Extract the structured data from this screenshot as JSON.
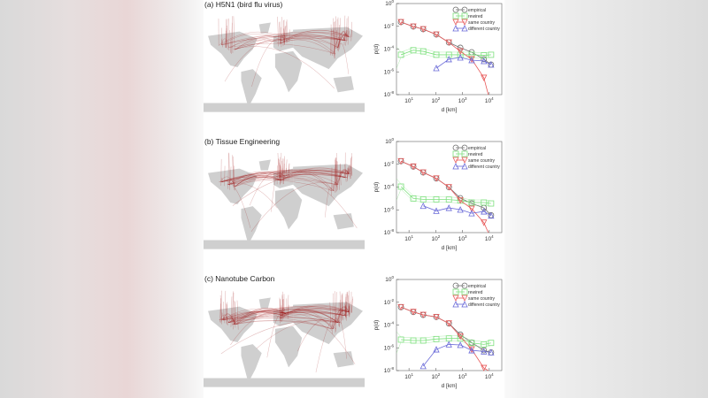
{
  "panels": [
    {
      "title": "(a) H5N1 (bird flu virus)"
    },
    {
      "title": "(b) Tissue Engineering"
    },
    {
      "title": "(c) Nanotube Carbon"
    }
  ],
  "colors": {
    "empirical": "#707070",
    "rewired": "#7ee07e",
    "same_country": "#e85a5a",
    "different_country": "#6a6ad8",
    "map_land": "#cfcfcf",
    "map_links": "#a01818"
  },
  "chart_data": [
    {
      "type": "line",
      "xscale": "log",
      "yscale": "log",
      "xlabel": "d  [km]",
      "ylabel": "p(d)",
      "xlim": [
        3.4,
        29500
      ],
      "ylim": [
        1e-08,
        1
      ],
      "xticks": [
        "10^1",
        "10^2",
        "10^3",
        "10^4"
      ],
      "yticks": [
        "10^0",
        "10^-2",
        "10^-4",
        "10^-6",
        "10^-8"
      ],
      "legend": "top-right",
      "x": [
        5,
        14.5,
        34,
        105,
        310,
        830,
        2200,
        6300,
        11700
      ],
      "series": [
        {
          "name": "empirical",
          "marker": "circle",
          "log10_values": [
            -1.63,
            -2.02,
            -2.25,
            -2.72,
            -3.42,
            -3.88,
            -4.27,
            -4.89,
            -5.36
          ]
        },
        {
          "name": "rewired",
          "marker": "square",
          "log10_values": [
            -4.5,
            -4.1,
            -4.2,
            -4.5,
            -4.5,
            -4.5,
            -4.5,
            -4.55,
            -4.5
          ]
        },
        {
          "name": "same country",
          "marker": "triangle-down",
          "log10_values": [
            -1.63,
            -2.02,
            -2.25,
            -2.72,
            -3.42,
            -4.2,
            -4.89,
            -6.52,
            null
          ]
        },
        {
          "name": "different country",
          "marker": "triangle-up",
          "log10_values": [
            null,
            null,
            null,
            -5.67,
            -4.89,
            -4.74,
            -4.97,
            -5.05,
            -5.36
          ]
        }
      ]
    },
    {
      "type": "line",
      "xscale": "log",
      "yscale": "log",
      "xlabel": "d  [km]",
      "ylabel": "p(d)",
      "xlim": [
        3.4,
        29500
      ],
      "ylim": [
        1e-08,
        1
      ],
      "xticks": [
        "10^1",
        "10^2",
        "10^3",
        "10^4"
      ],
      "yticks": [
        "10^0",
        "10^-2",
        "10^-4",
        "10^-6",
        "10^-8"
      ],
      "legend": "top-right",
      "x": [
        5,
        14.5,
        34,
        105,
        310,
        830,
        2200,
        6300,
        11700
      ],
      "series": [
        {
          "name": "empirical",
          "marker": "circle",
          "log10_values": [
            -1.73,
            -2.2,
            -2.72,
            -3.24,
            -4.01,
            -4.97,
            -5.44,
            -5.83,
            -6.47
          ]
        },
        {
          "name": "rewired",
          "marker": "square",
          "log10_values": [
            -3.96,
            -5.0,
            -5.08,
            -5.08,
            -5.1,
            -5.18,
            -5.36,
            -5.36,
            -5.44
          ]
        },
        {
          "name": "same country",
          "marker": "triangle-down",
          "log10_values": [
            -1.73,
            -2.2,
            -2.72,
            -3.24,
            -4.01,
            -5.18,
            -5.9,
            -7.12,
            null
          ]
        },
        {
          "name": "different country",
          "marker": "triangle-up",
          "log10_values": [
            null,
            null,
            -5.65,
            -6.09,
            -5.83,
            -5.98,
            -6.3,
            -6.14,
            -6.5
          ]
        }
      ]
    },
    {
      "type": "line",
      "xscale": "log",
      "yscale": "log",
      "xlabel": "d  [km]",
      "ylabel": "p(d)",
      "xlim": [
        3.4,
        29500
      ],
      "ylim": [
        1e-08,
        1
      ],
      "xticks": [
        "10^1",
        "10^2",
        "10^3",
        "10^4"
      ],
      "yticks": [
        "10^0",
        "10^-2",
        "10^-4",
        "10^-6",
        "10^-8"
      ],
      "legend": "top-right",
      "x": [
        5,
        14.5,
        34,
        105,
        310,
        830,
        2200,
        6300,
        11700
      ],
      "series": [
        {
          "name": "empirical",
          "marker": "circle",
          "log10_values": [
            -2.43,
            -2.85,
            -3.11,
            -3.29,
            -3.86,
            -4.84,
            -5.54,
            -6.22,
            -6.4
          ]
        },
        {
          "name": "rewired",
          "marker": "square",
          "log10_values": [
            -5.28,
            -5.36,
            -5.36,
            -5.23,
            -5.18,
            -5.18,
            -5.57,
            -5.7,
            -5.57
          ]
        },
        {
          "name": "same country",
          "marker": "triangle-down",
          "log10_values": [
            -2.43,
            -2.85,
            -3.11,
            -3.29,
            -3.86,
            -5.0,
            -6.14,
            -7.77,
            null
          ]
        },
        {
          "name": "different country",
          "marker": "triangle-up",
          "log10_values": [
            null,
            null,
            -7.6,
            -6.14,
            -5.7,
            -5.75,
            -6.22,
            -6.32,
            -6.4
          ]
        }
      ]
    }
  ]
}
